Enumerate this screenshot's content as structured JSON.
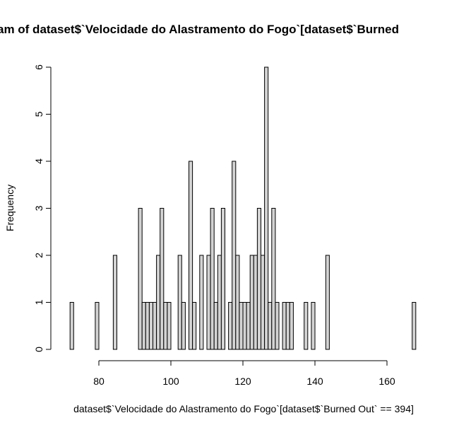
{
  "chart_data": {
    "type": "histogram",
    "title": "am of dataset$`Velocidade do Alastramento do Fogo`[dataset$`Burned",
    "x_label": "dataset$`Velocidade do Alastramento do Fogo`[dataset$`Burned Out` == 394]",
    "y_label": "Frequency",
    "bins": [
      72,
      73,
      74,
      75,
      76,
      77,
      78,
      79,
      80,
      81,
      82,
      83,
      84,
      85,
      86,
      87,
      88,
      89,
      90,
      91,
      92,
      93,
      94,
      95,
      96,
      97,
      98,
      99,
      100,
      101,
      102,
      103,
      104,
      105,
      106,
      107,
      108,
      109,
      110,
      111,
      112,
      113,
      114,
      115,
      116,
      117,
      118,
      119,
      120,
      121,
      122,
      123,
      124,
      125,
      126,
      127,
      128,
      129,
      130,
      131,
      132,
      133,
      134,
      135,
      136,
      137,
      138,
      139,
      140,
      141,
      142,
      143,
      144,
      145,
      146,
      147,
      148,
      149,
      150,
      151,
      152,
      153,
      154,
      155,
      156,
      157,
      158,
      159,
      160,
      161,
      162,
      163,
      164,
      165,
      166,
      167,
      168
    ],
    "values": [
      1,
      0,
      0,
      0,
      0,
      0,
      0,
      1,
      0,
      0,
      0,
      0,
      2,
      0,
      0,
      0,
      0,
      0,
      0,
      3,
      1,
      1,
      1,
      1,
      2,
      3,
      1,
      1,
      0,
      0,
      2,
      1,
      0,
      4,
      1,
      0,
      2,
      0,
      2,
      3,
      1,
      2,
      3,
      0,
      1,
      4,
      2,
      1,
      1,
      1,
      2,
      2,
      3,
      2,
      6,
      1,
      3,
      1,
      0,
      1,
      1,
      1,
      0,
      0,
      0,
      1,
      0,
      1,
      0,
      0,
      0,
      2,
      0,
      0,
      0,
      0,
      0,
      0,
      0,
      0,
      0,
      0,
      0,
      0,
      0,
      0,
      0,
      0,
      0,
      0,
      0,
      0,
      0,
      0,
      0,
      1
    ],
    "color": "#d3d3d3",
    "xlim": [
      72,
      168
    ],
    "xticks": [
      80,
      100,
      120,
      140,
      160
    ],
    "ylim": [
      0,
      6
    ],
    "yticks": [
      0,
      1,
      2,
      3,
      4,
      5,
      6
    ]
  }
}
